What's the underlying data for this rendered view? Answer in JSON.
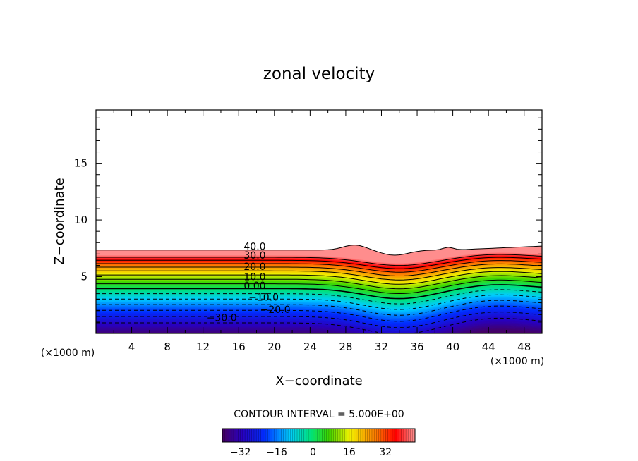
{
  "chart_data": {
    "type": "heatmap",
    "title": "zonal velocity",
    "xlabel": "X−coordinate",
    "ylabel": "Z−coordinate",
    "x_unit_left": "(×1000 m)",
    "x_unit_right": "(×1000 m)",
    "xlim": [
      0,
      50
    ],
    "ylim": [
      0,
      19.7
    ],
    "x_ticks": [
      4,
      8,
      12,
      16,
      20,
      24,
      28,
      32,
      36,
      40,
      44,
      48
    ],
    "x_tick_labels": [
      "4",
      "8",
      "12",
      "16",
      "20",
      "24",
      "28",
      "32",
      "36",
      "40",
      "44",
      "48"
    ],
    "y_ticks": [
      5,
      10,
      15
    ],
    "y_tick_labels": [
      "5",
      "10",
      "15"
    ],
    "contour_interval_text": "CONTOUR INTERVAL = 5.000E+00",
    "value_range": [
      -40,
      45
    ],
    "contour_levels": [
      -30,
      -25,
      -20,
      -15,
      -10,
      -5,
      0,
      5,
      10,
      15,
      20,
      25,
      30,
      35,
      40
    ],
    "contour_labels": [
      {
        "text": "40.0",
        "x": 17.8,
        "z": 7.35
      },
      {
        "text": "30.0",
        "x": 17.8,
        "z": 6.6
      },
      {
        "text": "20.0",
        "x": 17.8,
        "z": 5.6
      },
      {
        "text": "10.0",
        "x": 17.8,
        "z": 4.7
      },
      {
        "text": "0.00",
        "x": 17.8,
        "z": 3.9
      },
      {
        "text": "−10.0",
        "x": 18.8,
        "z": 2.9
      },
      {
        "text": "−20.0",
        "x": 20.1,
        "z": 1.8
      },
      {
        "text": "−30.0",
        "x": 14.1,
        "z": 1.1
      }
    ],
    "colorbar": {
      "min": -40,
      "max": 45,
      "ticks": [
        -32,
        -16,
        0,
        16,
        32
      ],
      "tick_labels": [
        "−32",
        "−16",
        "0",
        "16",
        "32"
      ]
    }
  }
}
